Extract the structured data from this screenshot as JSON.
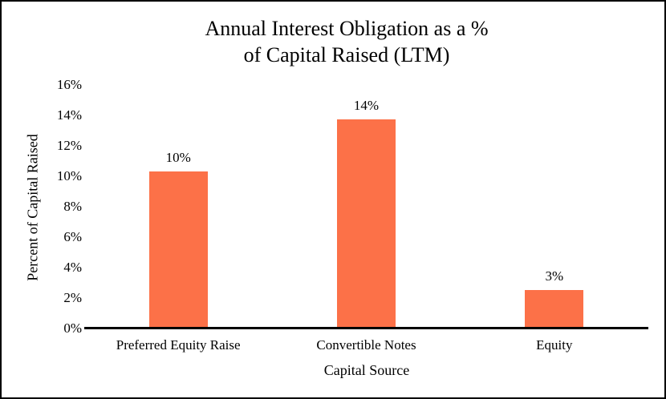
{
  "chart_data": {
    "type": "bar",
    "title": "Annual Interest Obligation as a % of Capital Raised (LTM)",
    "title_lines": [
      "Annual Interest Obligation as a %",
      "of Capital Raised (LTM)"
    ],
    "categories": [
      "Preferred Equity Raise",
      "Convertible Notes",
      "Equity"
    ],
    "values": [
      10.3,
      13.75,
      2.5
    ],
    "data_labels": [
      "10%",
      "14%",
      "3%"
    ],
    "xlabel": "Capital Source",
    "ylabel": "Percent of Capital Raised",
    "ylim": [
      0,
      16
    ],
    "ytick_step": 2,
    "ytick_labels": [
      "0%",
      "2%",
      "4%",
      "6%",
      "8%",
      "10%",
      "12%",
      "14%",
      "16%"
    ],
    "grid": false,
    "legend": "none",
    "bar_color": "#FC7148"
  },
  "colors": {
    "bar": "#FC7148",
    "axis": "#000000",
    "text": "#000000",
    "background": "#FFFFFF",
    "frame_border": "#000000"
  }
}
